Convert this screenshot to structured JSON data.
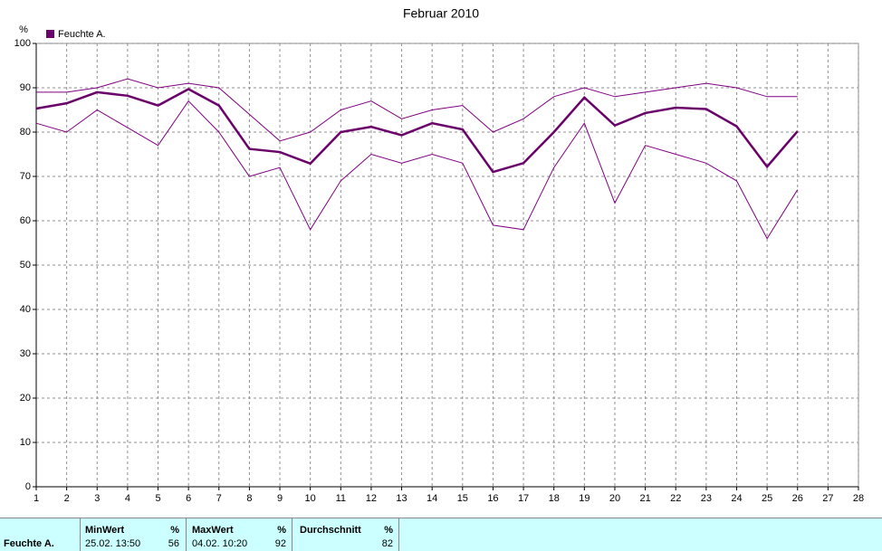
{
  "chart_data": {
    "type": "line",
    "title": "Februar 2010",
    "y_unit": "%",
    "x": [
      1,
      2,
      3,
      4,
      5,
      6,
      7,
      8,
      9,
      10,
      11,
      12,
      13,
      14,
      15,
      16,
      17,
      18,
      19,
      20,
      21,
      22,
      23,
      24,
      25,
      26
    ],
    "xlim": [
      1,
      28
    ],
    "xticks": [
      1,
      2,
      3,
      4,
      5,
      6,
      7,
      8,
      9,
      10,
      11,
      12,
      13,
      14,
      15,
      16,
      17,
      18,
      19,
      20,
      21,
      22,
      23,
      24,
      25,
      26,
      27,
      28
    ],
    "ylim": [
      0,
      100
    ],
    "yticks": [
      0,
      10,
      20,
      30,
      40,
      50,
      60,
      70,
      80,
      90,
      100
    ],
    "grid": true,
    "series": [
      {
        "name": "Feuchte A.",
        "color": "#6a006a",
        "width": 2.5,
        "values": [
          85.3,
          86.5,
          89,
          88.2,
          86,
          89.7,
          86,
          76.2,
          75.5,
          72.9,
          80,
          81.2,
          79.3,
          82,
          80.6,
          71,
          73,
          80,
          87.8,
          81.5,
          84.3,
          85.5,
          85.2,
          81.3,
          72.2,
          80.2
        ]
      },
      {
        "color": "#800080",
        "width": 1,
        "values": [
          89,
          89,
          90,
          92,
          90,
          91,
          90,
          84,
          78,
          80,
          85,
          87,
          83,
          85,
          86,
          80,
          83,
          88,
          90,
          88,
          89,
          90,
          91,
          90,
          88,
          88
        ]
      },
      {
        "color": "#800080",
        "width": 1,
        "values": [
          82,
          80,
          85,
          81,
          77,
          87,
          80,
          70,
          72,
          58,
          69,
          75,
          73,
          75,
          73,
          59,
          58,
          72,
          82,
          64,
          77,
          75,
          73,
          69,
          56,
          67
        ]
      }
    ]
  },
  "table": {
    "header": [
      "MinWert",
      "%",
      "MaxWert",
      "%",
      "Durchschnitt",
      "%"
    ],
    "rows": [
      [
        "Feuchte A.",
        "25.02.  13:50",
        "56",
        "04.02.  10:20",
        "92",
        "82"
      ]
    ]
  }
}
